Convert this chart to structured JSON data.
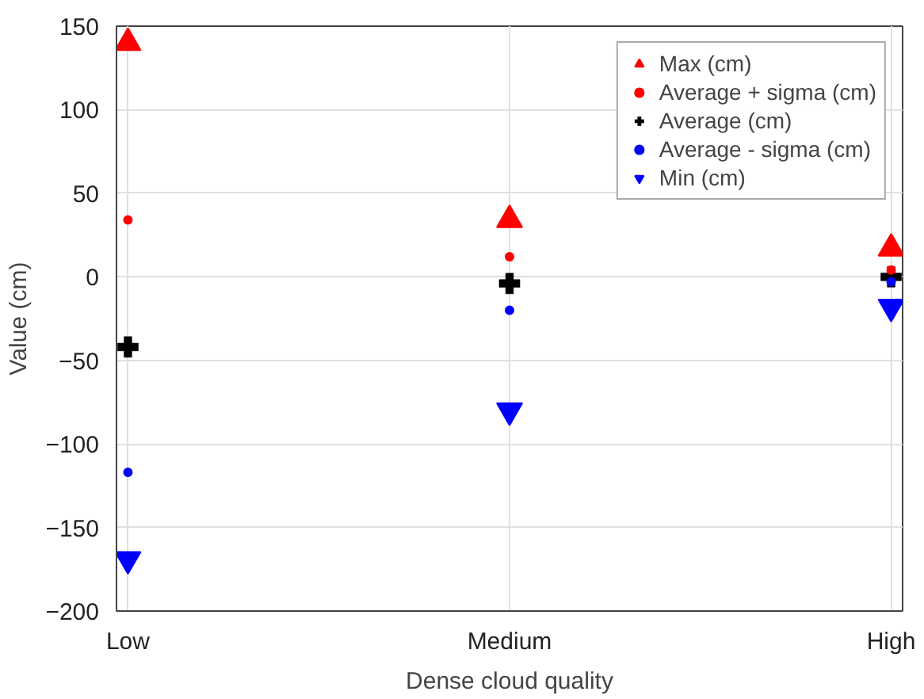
{
  "chart_data": {
    "type": "scatter",
    "xlabel": "Dense cloud quality",
    "ylabel": "Value (cm)",
    "categories": [
      "Low",
      "Medium",
      "High"
    ],
    "series": [
      {
        "name": "Max (cm)",
        "color": "#ff0000",
        "marker": "triangle",
        "values": [
          140,
          34,
          17
        ]
      },
      {
        "name": "Average + sigma (cm)",
        "color": "#ff0000",
        "marker": "circle",
        "values": [
          34,
          12,
          4
        ]
      },
      {
        "name": "Average (cm)",
        "color": "#000000",
        "marker": "cross",
        "values": [
          -42,
          -4,
          0
        ]
      },
      {
        "name": "Average - sigma (cm)",
        "color": "#0000ff",
        "marker": "circle",
        "values": [
          -117,
          -20,
          -3
        ]
      },
      {
        "name": "Min (cm)",
        "color": "#0000ff",
        "marker": "triangle",
        "values": [
          -169,
          -80,
          -18
        ]
      }
    ],
    "ylim": [
      -200,
      150
    ],
    "yticks": [
      -200,
      -150,
      -100,
      -50,
      0,
      50,
      100,
      150
    ],
    "grid": true,
    "legend": "top right"
  }
}
